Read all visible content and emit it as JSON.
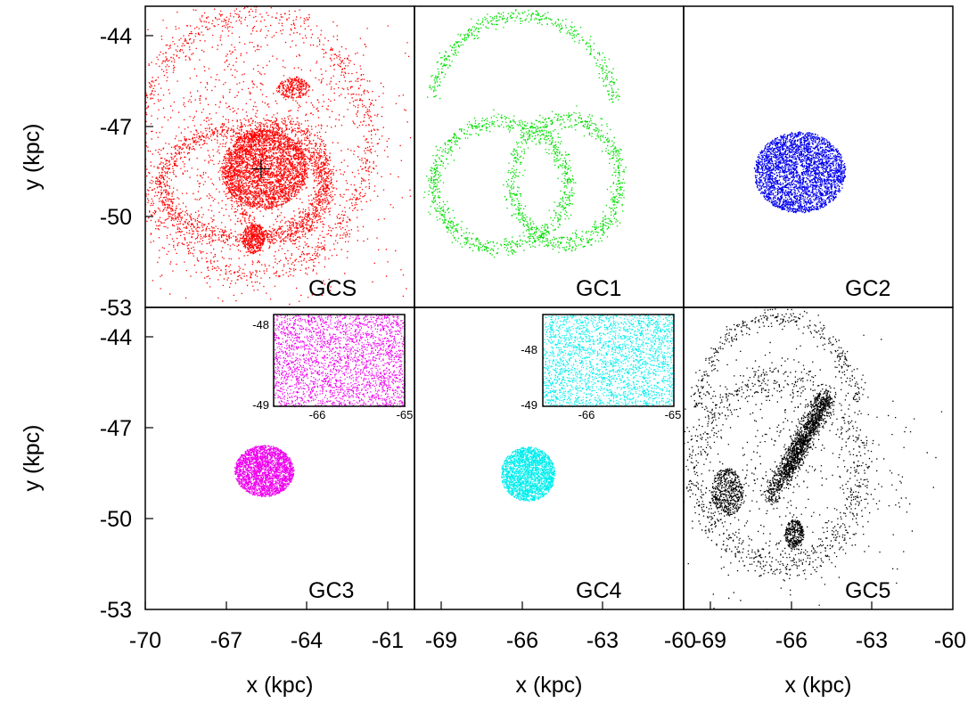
{
  "chart_data": {
    "type": "scatter",
    "layout": "2x3 panel grid with shared axes",
    "x_axis_label": "x (kpc)",
    "y_axis_label": "y (kpc)",
    "top_row_yticks": [
      "-44",
      "-47",
      "-50",
      "-53"
    ],
    "bottom_row_yticks": [
      "-44",
      "-47",
      "-50",
      "-53"
    ],
    "xticks_col1": [
      "-70",
      "-67",
      "-64",
      "-61"
    ],
    "xticks_col2": [
      "-69",
      "-66",
      "-63",
      "-60"
    ],
    "xticks_col3": [
      "-69",
      "-66",
      "-63",
      "-60"
    ],
    "panels": [
      {
        "label": "GCS",
        "color": "#ff0000",
        "xlim": [
          -70,
          -60
        ],
        "ylim": [
          -53,
          -43
        ],
        "components": [
          {
            "shape": "blob",
            "cx": -65.6,
            "cy": -48.4,
            "rx": 1.6,
            "ry": 1.3,
            "n": 2600
          },
          {
            "shape": "ring",
            "cx": -66.4,
            "cy": -48.9,
            "rx": 3.0,
            "ry": 1.8,
            "width": 0.35,
            "n": 1300
          },
          {
            "shape": "ring",
            "cx": -66.0,
            "cy": -47.6,
            "rx": 4.3,
            "ry": 4.3,
            "width": 0.5,
            "n": 1000
          },
          {
            "shape": "ring",
            "cx": -65.0,
            "cy": -48.8,
            "rx": 1.8,
            "ry": 1.9,
            "width": 0.3,
            "n": 700
          },
          {
            "shape": "blob",
            "cx": -66.0,
            "cy": -50.7,
            "rx": 0.4,
            "ry": 0.5,
            "n": 350
          },
          {
            "shape": "blob",
            "cx": -64.5,
            "cy": -45.7,
            "rx": 0.6,
            "ry": 0.35,
            "n": 250
          },
          {
            "shape": "halo",
            "cx": -66.0,
            "cy": -48.0,
            "rx": 6.0,
            "ry": 5.5,
            "n": 1500
          }
        ],
        "center_marker": {
          "x": -65.7,
          "y": -48.4
        }
      },
      {
        "label": "GC1",
        "color": "#00dd00",
        "xlim": [
          -70,
          -60
        ],
        "ylim": [
          -53,
          -43
        ],
        "components": [
          {
            "shape": "ring",
            "cx": -66.8,
            "cy": -48.9,
            "rx": 2.5,
            "ry": 2.1,
            "width": 0.3,
            "n": 900
          },
          {
            "shape": "ring",
            "cx": -64.4,
            "cy": -48.8,
            "rx": 2.0,
            "ry": 2.1,
            "width": 0.3,
            "n": 800
          },
          {
            "shape": "arc",
            "cx": -66.0,
            "cy": -46.5,
            "rx": 3.4,
            "ry": 3.2,
            "width": 0.25,
            "from": 0.1,
            "to": 3.0,
            "n": 450
          }
        ]
      },
      {
        "label": "GC2",
        "color": "#0000ee",
        "xlim": [
          -70,
          -60
        ],
        "ylim": [
          -53,
          -43
        ],
        "components": [
          {
            "shape": "blob",
            "cx": -65.7,
            "cy": -48.5,
            "rx": 1.7,
            "ry": 1.35,
            "n": 3200
          }
        ],
        "hole": {
          "cx": -65.7,
          "cy": -48.4,
          "r": 0.12
        }
      },
      {
        "label": "GC3",
        "color": "#ee00ee",
        "xlim": [
          -70,
          -60
        ],
        "ylim": [
          -53,
          -43
        ],
        "components": [
          {
            "shape": "blob",
            "cx": -65.6,
            "cy": -48.4,
            "rx": 1.1,
            "ry": 0.85,
            "n": 2200
          }
        ],
        "inset": {
          "xlim": [
            -66,
            -65
          ],
          "ylim": [
            -49,
            -48
          ],
          "xticks": [
            "-66",
            "-65"
          ],
          "yticks": [
            "-48",
            "-49"
          ],
          "hole": {
            "x": -65.8,
            "y": -48.4
          }
        }
      },
      {
        "label": "GC4",
        "color": "#00eeee",
        "xlim": [
          -70,
          -60
        ],
        "ylim": [
          -53,
          -43
        ],
        "components": [
          {
            "shape": "blob",
            "cx": -65.8,
            "cy": -48.5,
            "rx": 1.0,
            "ry": 0.9,
            "n": 2000
          }
        ],
        "inset": {
          "xlim": [
            -66,
            -65
          ],
          "ylim": [
            -49,
            -48
          ],
          "xticks": [
            "-66",
            "-65"
          ],
          "yticks": [
            "-48",
            "-49"
          ],
          "hole": {
            "x": -65.6,
            "y": -48.5
          }
        }
      },
      {
        "label": "GC5",
        "color": "#000000",
        "xlim": [
          -70,
          -60
        ],
        "ylim": [
          -53,
          -43
        ],
        "components": [
          {
            "shape": "bar",
            "x1": -66.8,
            "y1": -49.3,
            "x2": -64.8,
            "y2": -45.9,
            "width": 0.35,
            "n": 1000
          },
          {
            "shape": "bar",
            "x1": -66.2,
            "y1": -48.6,
            "x2": -64.6,
            "y2": -46.0,
            "width": 0.25,
            "n": 600
          },
          {
            "shape": "blob",
            "cx": -68.4,
            "cy": -49.1,
            "rx": 0.6,
            "ry": 0.8,
            "n": 500
          },
          {
            "shape": "blob",
            "cx": -65.9,
            "cy": -50.5,
            "rx": 0.35,
            "ry": 0.5,
            "n": 300
          },
          {
            "shape": "ring",
            "cx": -66.5,
            "cy": -48.4,
            "rx": 3.0,
            "ry": 3.1,
            "width": 0.6,
            "n": 900
          },
          {
            "shape": "arc",
            "cx": -66.5,
            "cy": -46.6,
            "rx": 3.0,
            "ry": 3.3,
            "width": 0.3,
            "from": 0.15,
            "to": 3.05,
            "n": 350
          },
          {
            "shape": "halo",
            "cx": -66.0,
            "cy": -48.5,
            "rx": 5.5,
            "ry": 5.0,
            "n": 500
          }
        ]
      }
    ]
  }
}
